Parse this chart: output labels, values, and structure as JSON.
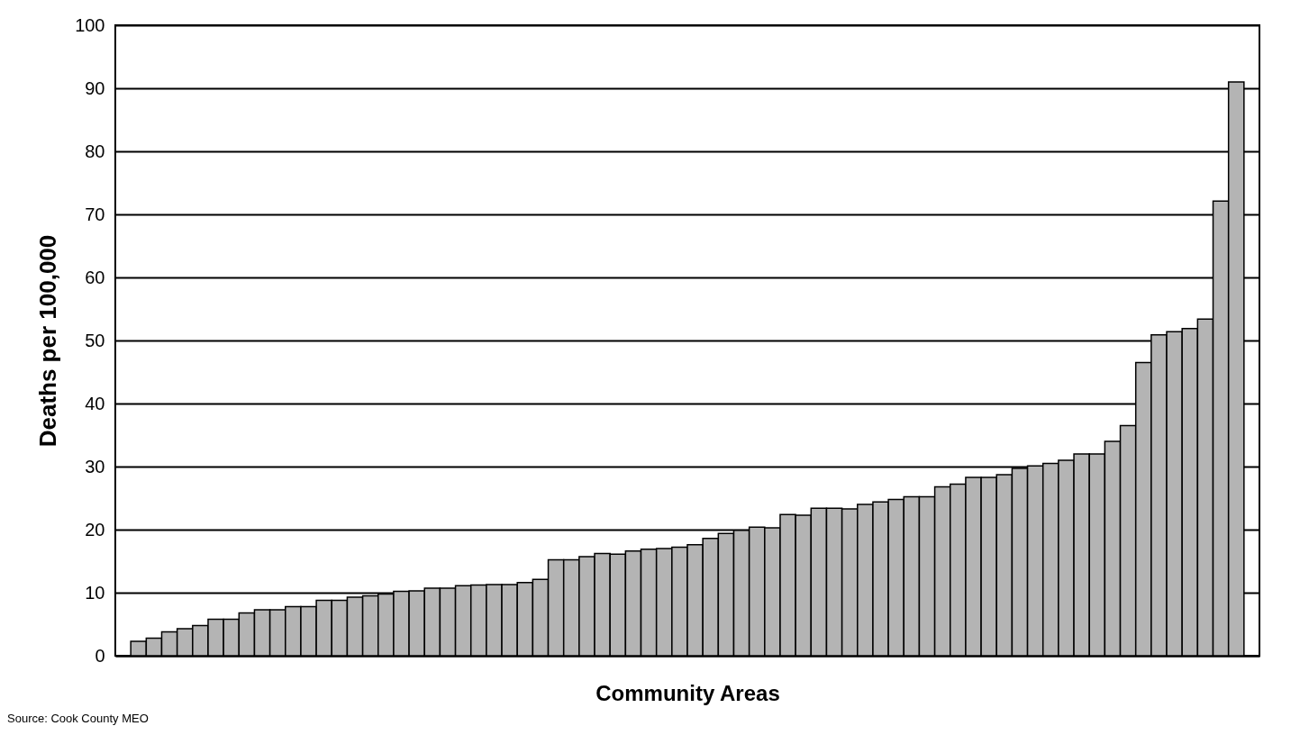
{
  "chart_data": {
    "type": "bar",
    "xlabel": "Community Areas",
    "ylabel": "Deaths per 100,000",
    "categories": [
      null,
      null,
      null,
      null,
      null,
      null,
      null,
      null,
      null,
      null,
      null,
      null,
      null,
      null,
      null,
      null,
      null,
      null,
      null,
      null,
      null,
      null,
      null,
      null,
      null,
      null,
      null,
      null,
      null,
      null,
      null,
      null,
      null,
      null,
      null,
      null,
      null,
      null,
      null,
      null,
      null,
      null,
      null,
      null,
      null,
      null,
      null,
      null,
      null,
      null,
      null,
      null,
      null,
      null,
      null,
      null,
      null,
      null,
      null,
      null,
      null,
      null,
      null,
      null,
      null,
      null,
      null,
      null,
      null,
      null,
      null,
      null
    ],
    "values": [
      2.3,
      2.8,
      3.8,
      4.3,
      4.8,
      5.8,
      5.8,
      6.8,
      7.3,
      7.3,
      7.8,
      7.8,
      8.8,
      8.8,
      9.3,
      9.5,
      9.8,
      10.2,
      10.3,
      10.7,
      10.7,
      11.1,
      11.2,
      11.3,
      11.3,
      11.6,
      12.1,
      15.2,
      15.2,
      15.7,
      16.2,
      16.1,
      16.6,
      16.9,
      17.0,
      17.2,
      17.6,
      18.6,
      19.4,
      19.9,
      20.4,
      20.3,
      22.4,
      22.3,
      23.4,
      23.4,
      23.3,
      24.0,
      24.4,
      24.8,
      25.2,
      25.2,
      26.8,
      27.2,
      28.3,
      28.3,
      28.7,
      29.7,
      30.1,
      30.5,
      31.0,
      32.0,
      32.0,
      34.0,
      36.5,
      46.5,
      50.9,
      51.4,
      51.9,
      53.4,
      72.1,
      91.0
    ],
    "color": "#b4b4b4",
    "ylim": [
      0,
      100
    ],
    "yticks": [
      0,
      10,
      20,
      30,
      40,
      50,
      60,
      70,
      80,
      90,
      100
    ],
    "grid": "y",
    "tick_labels": "y",
    "annotations": [
      "Source: Cook County MEO"
    ]
  }
}
